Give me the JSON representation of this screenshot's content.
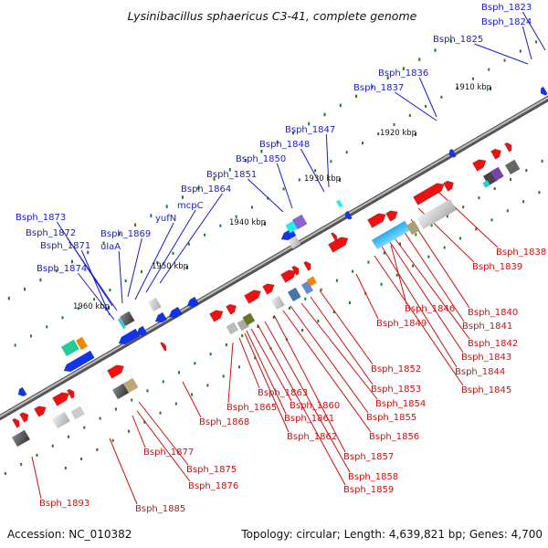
{
  "title": "Lysinibacillus sphaericus C3-41, complete genome",
  "colors": {
    "background": "#ffffff",
    "backbone": "#8a8a8a",
    "forward_gene": "#ee1111",
    "reverse_gene": "#1133ee",
    "upper_label": "#1a1acc",
    "lower_label": "#cc1111",
    "tick": "#227722"
  },
  "position_markers": [
    "1910 kbp",
    "1920 kbp",
    "1930 kbp",
    "1940 kbp",
    "1950 kbp",
    "1960 kbp"
  ],
  "upper_labels": [
    "Bsph_1823",
    "Bsph_1824",
    "Bsph_1825",
    "Bsph_1836",
    "Bsph_1837",
    "Bsph_1847",
    "Bsph_1848",
    "Bsph_1850",
    "Bsph_1851",
    "Bsph_1864",
    "mcpC",
    "yufN",
    "Bsph_1869",
    "ulaA",
    "Bsph_1873",
    "Bsph_1872",
    "Bsph_1871",
    "Bsph_1874"
  ],
  "lower_labels": [
    "Bsph_1838",
    "Bsph_1839",
    "Bsph_1840",
    "Bsph_1841",
    "Bsph_1842",
    "Bsph_1843",
    "Bsph_1844",
    "Bsph_1845",
    "Bsph_1846",
    "Bsph_1849",
    "Bsph_1852",
    "Bsph_1853",
    "Bsph_1854",
    "Bsph_1855",
    "Bsph_1856",
    "Bsph_1857",
    "Bsph_1858",
    "Bsph_1859",
    "Bsph_1860",
    "Bsph_1861",
    "Bsph_1862",
    "Bsph_1863",
    "Bsph_1865",
    "Bsph_1868",
    "Bsph_1877",
    "Bsph_1875",
    "Bsph_1876",
    "Bsph_1893",
    "Bsph_1885"
  ],
  "footer": {
    "accession": "Accession: NC_010382",
    "summary": "Topology: circular; Length: 4,639,821 bp; Genes: 4,700"
  }
}
